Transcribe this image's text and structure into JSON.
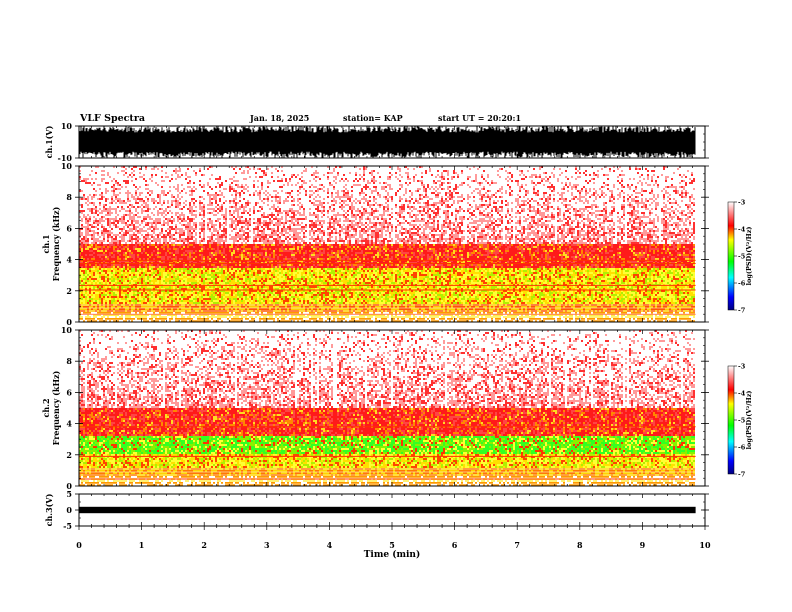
{
  "header": {
    "title": "VLF Spectra",
    "date": "Jan. 18, 2025",
    "station": "station= KAP",
    "start_ut": "start UT =  20:20:1"
  },
  "chart_data": [
    {
      "type": "line",
      "panel": "ch1-waveform",
      "ylabel": "ch.1(V)",
      "ylim": [
        -10,
        10
      ],
      "yticks": [
        "10",
        "-10"
      ],
      "trace": "dense black waveform filling most of the range",
      "ylabel_color": "#000000"
    },
    {
      "type": "heatmap",
      "panel": "ch1-spectrogram",
      "ylabel": "Frequency (kHz)",
      "channel_label": "ch.1",
      "ylim": [
        0,
        10
      ],
      "yticks": [
        "0",
        "2",
        "4",
        "6",
        "8",
        "10"
      ],
      "xlim": [
        0,
        10
      ],
      "data_end_min": 9.85,
      "bands": [
        {
          "from_khz": 0.0,
          "to_khz": 0.7,
          "level": "yellow-orange stripes"
        },
        {
          "from_khz": 0.7,
          "to_khz": 1.2,
          "level": "orange-red"
        },
        {
          "from_khz": 1.2,
          "to_khz": 3.5,
          "level": "yellow with red lines"
        },
        {
          "from_khz": 3.5,
          "to_khz": 5.0,
          "level": "red"
        },
        {
          "from_khz": 5.0,
          "to_khz": 10.0,
          "level": "light red speckle"
        }
      ],
      "colorbar": {
        "label": "log(PSD)(V²/Hz)",
        "ticks": [
          "-3",
          "-4",
          "-5",
          "-6",
          "-7"
        ],
        "range": [
          -7,
          -3
        ],
        "colors": [
          "#000080",
          "#0000ff",
          "#00ffff",
          "#00ff00",
          "#ffff00",
          "#ff0000",
          "#ffffff"
        ]
      }
    },
    {
      "type": "heatmap",
      "panel": "ch2-spectrogram",
      "ylabel": "Frequency (kHz)",
      "channel_label": "ch.2",
      "ylim": [
        0,
        10
      ],
      "yticks": [
        "0",
        "2",
        "4",
        "6",
        "8",
        "10"
      ],
      "xlim": [
        0,
        10
      ],
      "data_end_min": 9.85,
      "bands": [
        {
          "from_khz": 0.0,
          "to_khz": 0.8,
          "level": "yellow-orange stripes"
        },
        {
          "from_khz": 0.8,
          "to_khz": 2.0,
          "level": "yellow-green"
        },
        {
          "from_khz": 2.0,
          "to_khz": 3.2,
          "level": "green"
        },
        {
          "from_khz": 3.2,
          "to_khz": 5.0,
          "level": "red"
        },
        {
          "from_khz": 5.0,
          "to_khz": 10.0,
          "level": "light red speckle"
        }
      ],
      "colorbar": {
        "label": "log(PSD)(V²/Hz)",
        "ticks": [
          "-3",
          "-4",
          "-5",
          "-6",
          "-7"
        ],
        "range": [
          -7,
          -3
        ],
        "colors": [
          "#000080",
          "#0000ff",
          "#00ffff",
          "#00ff00",
          "#ffff00",
          "#ff0000",
          "#ffffff"
        ]
      }
    },
    {
      "type": "line",
      "panel": "ch3-waveform",
      "ylabel": "ch.3(V)",
      "ylim": [
        -5,
        5
      ],
      "yticks": [
        "5",
        "0",
        "-5"
      ],
      "trace": "narrow black band near zero",
      "band_range": [
        -1,
        1
      ]
    }
  ],
  "x_axis": {
    "label": "Time (min)",
    "ticks": [
      "0",
      "1",
      "2",
      "3",
      "4",
      "5",
      "6",
      "7",
      "8",
      "9",
      "10"
    ],
    "range": [
      0,
      10
    ]
  }
}
